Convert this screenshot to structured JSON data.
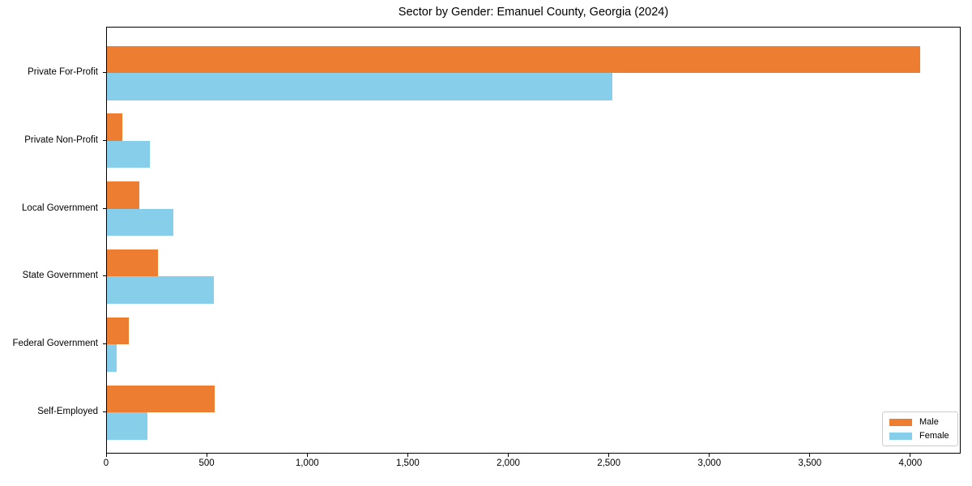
{
  "chart_data": {
    "type": "bar",
    "orientation": "horizontal",
    "title": "Sector by Gender: Emanuel County, Georgia (2024)",
    "categories": [
      "Private For-Profit",
      "Private Non-Profit",
      "Local Government",
      "State Government",
      "Federal Government",
      "Self-Employed"
    ],
    "series": [
      {
        "name": "Male",
        "color": "#ed7d31",
        "values": [
          4045,
          78,
          160,
          255,
          110,
          536
        ]
      },
      {
        "name": "Female",
        "color": "#87ceeb",
        "values": [
          2515,
          213,
          331,
          533,
          49,
          200
        ]
      }
    ],
    "xlim": [
      0,
      4250
    ],
    "x_ticks": [
      0,
      500,
      1000,
      1500,
      2000,
      2500,
      3000,
      3500,
      4000
    ],
    "x_tick_labels": [
      "0",
      "500",
      "1,000",
      "1,500",
      "2,000",
      "2,500",
      "3,000",
      "3,500",
      "4,000"
    ],
    "xlabel": "",
    "ylabel": "",
    "grid": false,
    "legend_position": "lower right",
    "frame_color": "#000000",
    "background_color": "#ffffff"
  }
}
